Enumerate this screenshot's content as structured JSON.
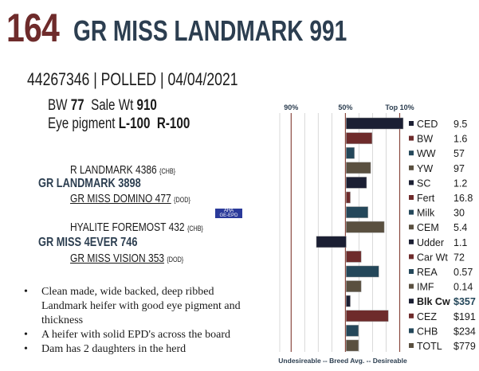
{
  "header": {
    "lot": "164",
    "name": "GR MISS LANDMARK 991"
  },
  "registration": "44267346 | POLLED | 04/04/2021",
  "stats": {
    "bw_label": "BW",
    "bw": "77",
    "sale_wt_label": "Sale Wt",
    "sale_wt": "910",
    "eye_label": "Eye pigment",
    "eye_l": "L-100",
    "eye_r": "R-100"
  },
  "pedigree": {
    "sire_sire": "R LANDMARK 4386",
    "sire_sire_tag": "{CHB}",
    "sire": "GR LANDMARK 3898",
    "sire_dam": "GR MISS DOMINO 477",
    "sire_dam_tag": "{DOD}",
    "dam_sire": "HYALITE FOREMOST 432",
    "dam_sire_tag": "{CHB}",
    "dam": "GR MISS 4EVER 746",
    "dam_dam": "GR MISS VISION 353",
    "dam_dam_tag": "{DOD}",
    "logo_text": "AHA GE-EPD"
  },
  "notes": [
    "Clean made, wide backed, deep ribbed Landmark heifer with good eye pigment and thickness",
    "A heifer with solid EPD's across the board",
    "Dam has 2 daughters in the herd"
  ],
  "chart_data": {
    "type": "bar",
    "orientation": "horizontal",
    "top_labels": [
      "90%",
      "50%",
      "Top 10%"
    ],
    "xlabel": "Undesireable -- Breed Avg. --  Desireable",
    "note": "values are percentile points relative to breed average (0 = 50%, 40 = Top 10%, -40 = 90%)",
    "xlim": [
      -49,
      45
    ],
    "categories": [
      "CED",
      "BW",
      "WW",
      "YW",
      "SC",
      "Fert",
      "Milk",
      "CEM",
      "Udder",
      "Car Wt",
      "REA",
      "IMF",
      "Blk Cw",
      "CEZ",
      "CHB",
      "TOTL"
    ],
    "epd_values": [
      "9.5",
      "1.6",
      "57",
      "97",
      "1.2",
      "16.8",
      "30",
      "5.4",
      "1.1",
      "72",
      "0.57",
      "0.14",
      "$357",
      "$191",
      "$234",
      "$779"
    ],
    "values": [
      42,
      19,
      6,
      18,
      15,
      3,
      16,
      28,
      -22,
      11,
      24,
      11,
      3,
      31,
      9,
      9
    ],
    "colors": [
      "#1b1f33",
      "#6e2b2b",
      "#24475a",
      "#5a5040"
    ]
  }
}
